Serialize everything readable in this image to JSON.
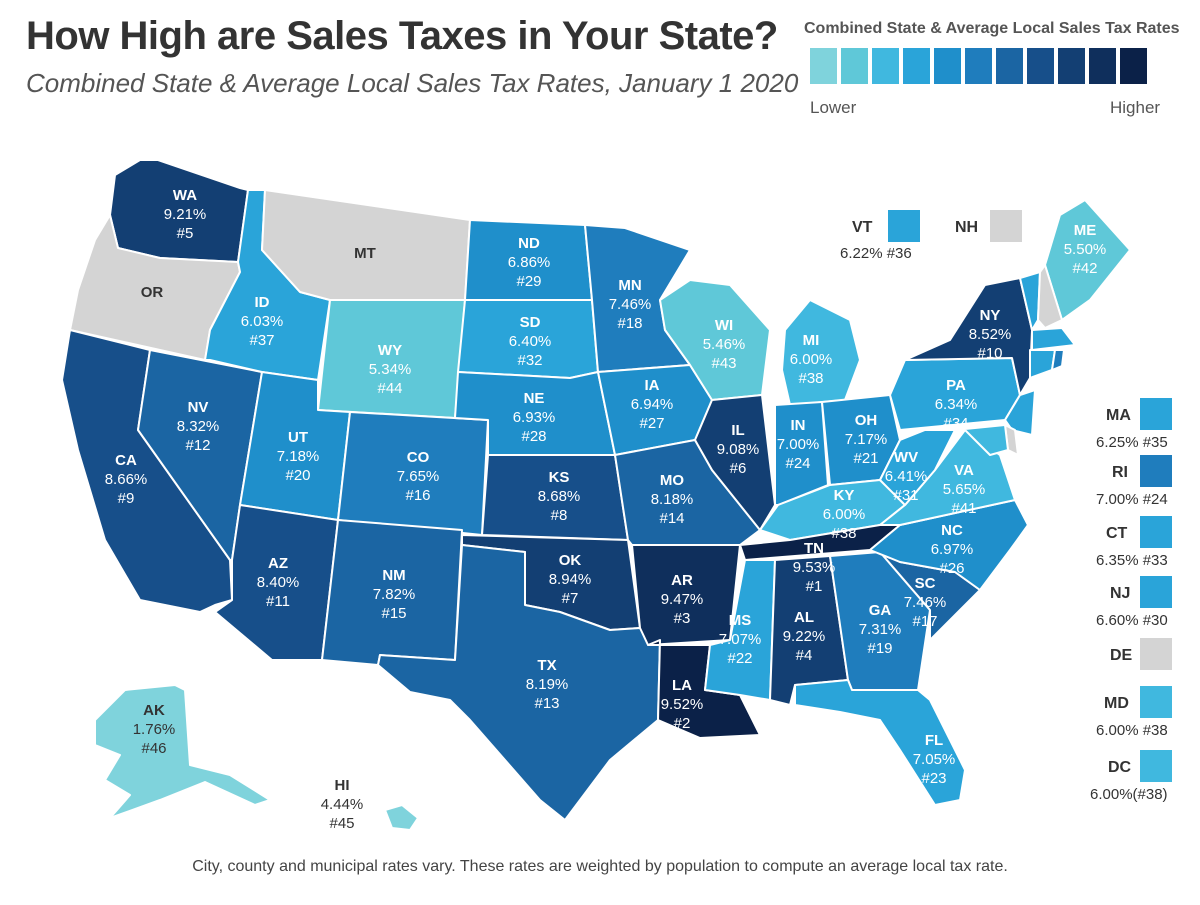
{
  "title": "How High are Sales Taxes in Your State?",
  "subtitle": "Combined State & Average Local Sales Tax Rates, January 1 2020",
  "legend": {
    "title": "Combined State & Average Local Sales Tax Rates",
    "lower_label": "Lower",
    "higher_label": "Higher",
    "colors": [
      "#7fd3dc",
      "#5fc8d8",
      "#40b8df",
      "#2aa4d9",
      "#1f8fcb",
      "#1f7dbd",
      "#1b65a3",
      "#174f8a",
      "#133f73",
      "#0f2f5c",
      "#0b2148"
    ]
  },
  "states": [
    {
      "abbr": "WA",
      "rate": "9.21%",
      "rank": "#5",
      "color": "#133f73"
    },
    {
      "abbr": "OR",
      "rate": "",
      "rank": "",
      "color": "#d4d4d4"
    },
    {
      "abbr": "CA",
      "rate": "8.66%",
      "rank": "#9",
      "color": "#174f8a"
    },
    {
      "abbr": "NV",
      "rate": "8.32%",
      "rank": "#12",
      "color": "#1b65a3"
    },
    {
      "abbr": "ID",
      "rate": "6.03%",
      "rank": "#37",
      "color": "#2aa4d9"
    },
    {
      "abbr": "MT",
      "rate": "",
      "rank": "",
      "color": "#d4d4d4"
    },
    {
      "abbr": "WY",
      "rate": "5.34%",
      "rank": "#44",
      "color": "#5fc8d8"
    },
    {
      "abbr": "UT",
      "rate": "7.18%",
      "rank": "#20",
      "color": "#1f8fcb"
    },
    {
      "abbr": "AZ",
      "rate": "8.40%",
      "rank": "#11",
      "color": "#174f8a"
    },
    {
      "abbr": "CO",
      "rate": "7.65%",
      "rank": "#16",
      "color": "#1f7dbd"
    },
    {
      "abbr": "NM",
      "rate": "7.82%",
      "rank": "#15",
      "color": "#1b65a3"
    },
    {
      "abbr": "ND",
      "rate": "6.86%",
      "rank": "#29",
      "color": "#1f8fcb"
    },
    {
      "abbr": "SD",
      "rate": "6.40%",
      "rank": "#32",
      "color": "#2aa4d9"
    },
    {
      "abbr": "NE",
      "rate": "6.93%",
      "rank": "#28",
      "color": "#1f8fcb"
    },
    {
      "abbr": "KS",
      "rate": "8.68%",
      "rank": "#8",
      "color": "#174f8a"
    },
    {
      "abbr": "OK",
      "rate": "8.94%",
      "rank": "#7",
      "color": "#133f73"
    },
    {
      "abbr": "TX",
      "rate": "8.19%",
      "rank": "#13",
      "color": "#1b65a3"
    },
    {
      "abbr": "MN",
      "rate": "7.46%",
      "rank": "#18",
      "color": "#1f7dbd"
    },
    {
      "abbr": "IA",
      "rate": "6.94%",
      "rank": "#27",
      "color": "#1f8fcb"
    },
    {
      "abbr": "MO",
      "rate": "8.18%",
      "rank": "#14",
      "color": "#1b65a3"
    },
    {
      "abbr": "AR",
      "rate": "9.47%",
      "rank": "#3",
      "color": "#0f2f5c"
    },
    {
      "abbr": "LA",
      "rate": "9.52%",
      "rank": "#2",
      "color": "#0b2148"
    },
    {
      "abbr": "WI",
      "rate": "5.46%",
      "rank": "#43",
      "color": "#5fc8d8"
    },
    {
      "abbr": "IL",
      "rate": "9.08%",
      "rank": "#6",
      "color": "#133f73"
    },
    {
      "abbr": "MI",
      "rate": "6.00%",
      "rank": "#38",
      "color": "#40b8df"
    },
    {
      "abbr": "IN",
      "rate": "7.00%",
      "rank": "#24",
      "color": "#1f8fcb"
    },
    {
      "abbr": "OH",
      "rate": "7.17%",
      "rank": "#21",
      "color": "#1f8fcb"
    },
    {
      "abbr": "KY",
      "rate": "6.00%",
      "rank": "#38",
      "color": "#40b8df"
    },
    {
      "abbr": "TN",
      "rate": "9.53%",
      "rank": "#1",
      "color": "#0b2148"
    },
    {
      "abbr": "MS",
      "rate": "7.07%",
      "rank": "#22",
      "color": "#2aa4d9"
    },
    {
      "abbr": "AL",
      "rate": "9.22%",
      "rank": "#4",
      "color": "#133f73"
    },
    {
      "abbr": "GA",
      "rate": "7.31%",
      "rank": "#19",
      "color": "#1f7dbd"
    },
    {
      "abbr": "FL",
      "rate": "7.05%",
      "rank": "#23",
      "color": "#2aa4d9"
    },
    {
      "abbr": "SC",
      "rate": "7.46%",
      "rank": "#17",
      "color": "#1b65a3"
    },
    {
      "abbr": "NC",
      "rate": "6.97%",
      "rank": "#26",
      "color": "#1f8fcb"
    },
    {
      "abbr": "VA",
      "rate": "5.65%",
      "rank": "#41",
      "color": "#40b8df"
    },
    {
      "abbr": "WV",
      "rate": "6.41%",
      "rank": "#31",
      "color": "#2aa4d9"
    },
    {
      "abbr": "PA",
      "rate": "6.34%",
      "rank": "#34",
      "color": "#2aa4d9"
    },
    {
      "abbr": "NY",
      "rate": "8.52%",
      "rank": "#10",
      "color": "#133f73"
    },
    {
      "abbr": "ME",
      "rate": "5.50%",
      "rank": "#42",
      "color": "#5fc8d8"
    },
    {
      "abbr": "AK",
      "rate": "1.76%",
      "rank": "#46",
      "color": "#7fd3dc"
    },
    {
      "abbr": "HI",
      "rate": "4.44%",
      "rank": "#45",
      "color": "#7fd3dc"
    }
  ],
  "small_states": [
    {
      "abbr": "VT",
      "text": "6.22% #36",
      "color": "#2aa4d9"
    },
    {
      "abbr": "NH",
      "text": "",
      "color": "#d4d4d4"
    },
    {
      "abbr": "MA",
      "text": "6.25% #35",
      "color": "#2aa4d9"
    },
    {
      "abbr": "RI",
      "text": "7.00% #24",
      "color": "#1f7dbd"
    },
    {
      "abbr": "CT",
      "text": "6.35% #33",
      "color": "#2aa4d9"
    },
    {
      "abbr": "NJ",
      "text": "6.60% #30",
      "color": "#2aa4d9"
    },
    {
      "abbr": "DE",
      "text": "",
      "color": "#d4d4d4"
    },
    {
      "abbr": "MD",
      "text": "6.00% #38",
      "color": "#40b8df"
    },
    {
      "abbr": "DC",
      "text": "6.00%(#38)",
      "color": "#40b8df"
    }
  ],
  "footnote": "City, county and municipal rates vary. These rates are weighted by population to compute an average local tax rate."
}
